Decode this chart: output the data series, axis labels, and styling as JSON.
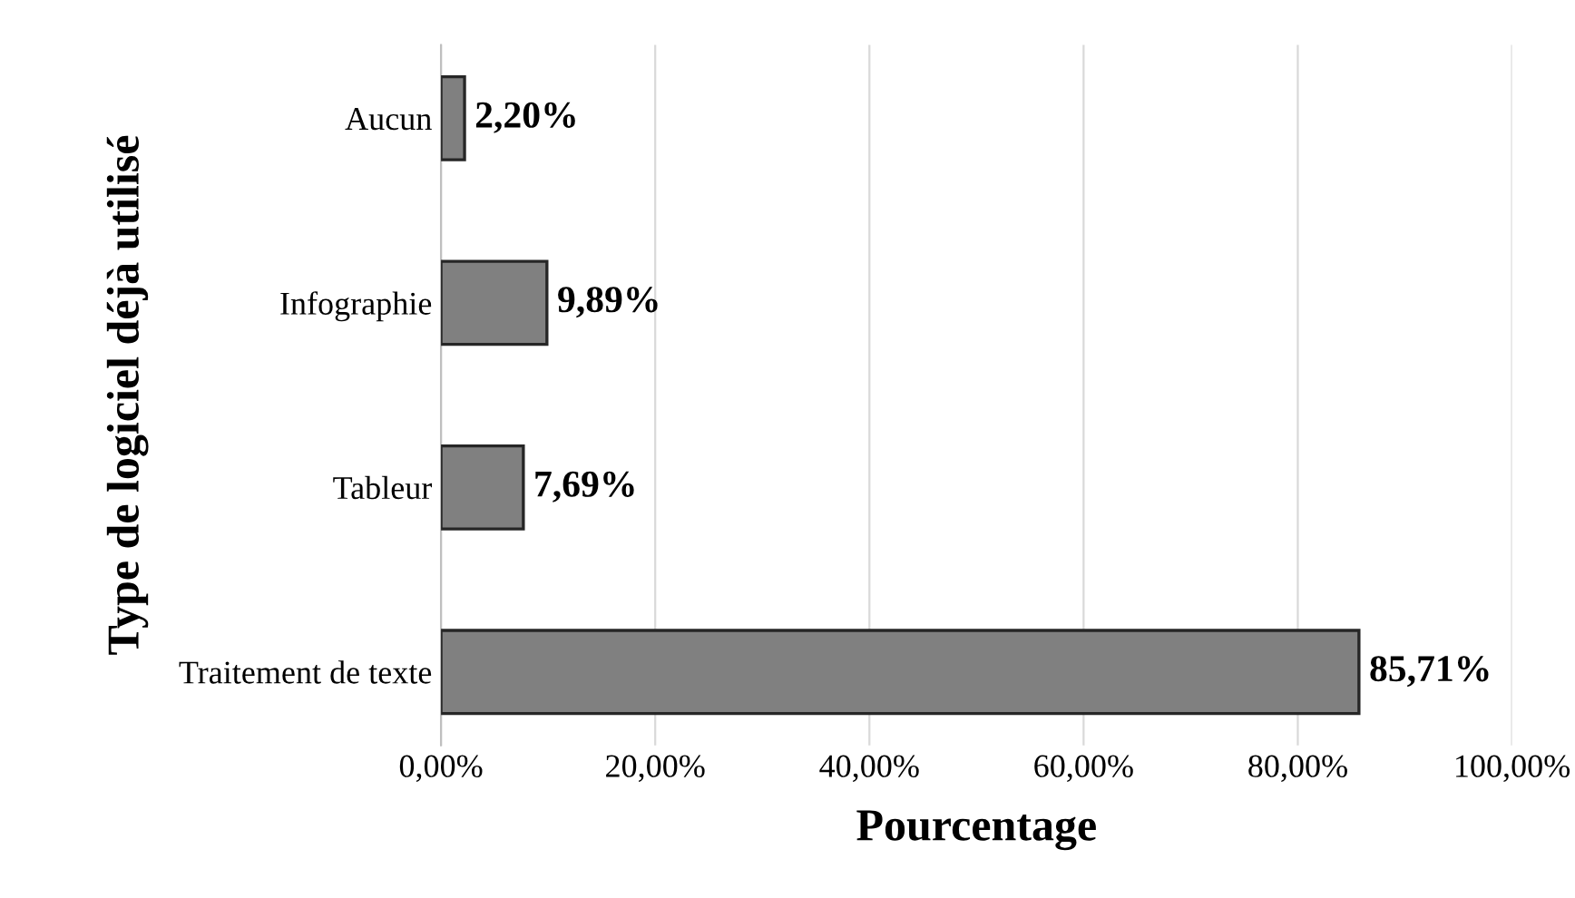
{
  "chart_data": {
    "type": "bar",
    "orientation": "horizontal",
    "xlabel": "Pourcentage",
    "ylabel": "Type de logiciel déjà utilisé",
    "categories": [
      "Aucun",
      "Infographie",
      "Tableur",
      "Traitement de texte"
    ],
    "values": [
      2.2,
      9.89,
      7.69,
      85.71
    ],
    "value_labels": [
      "2,20%",
      "9,89%",
      "7,69%",
      "85,71%"
    ],
    "color": "#808080",
    "xlim": [
      0,
      100
    ],
    "xticks": [
      {
        "value": 0,
        "label": "0,00%"
      },
      {
        "value": 20,
        "label": "20,00%"
      },
      {
        "value": 40,
        "label": "40,00%"
      },
      {
        "value": 60,
        "label": "60,00%"
      },
      {
        "value": 80,
        "label": "80,00%"
      },
      {
        "value": 100,
        "label": "100,00%"
      }
    ],
    "grid": "x"
  }
}
